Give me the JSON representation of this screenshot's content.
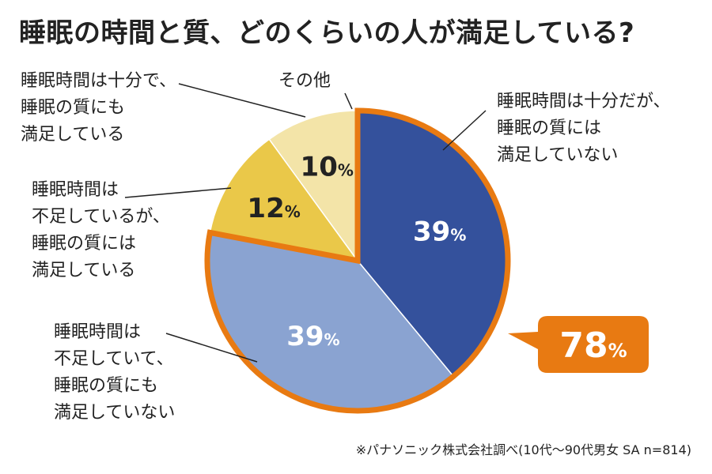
{
  "title": "睡眠の時間と質、どのくらいの人が満足している?",
  "source_note": "※パナソニック株式会社調べ(10代〜90代男女 SA n=814)",
  "callout": "78%",
  "colors": {
    "slice_1": "#34519c",
    "slice_2": "#8aa3d1",
    "slice_3": "#eac849",
    "slice_4": "#f3e4a8",
    "highlight": "#e87a12",
    "callout_text": "#ffffff"
  },
  "chart_data": {
    "type": "pie",
    "title": "睡眠の時間と質、どのくらいの人が満足している?",
    "slices": [
      {
        "label": "睡眠時間は十分だが、\n睡眠の質には\n満足していない",
        "value": 39,
        "value_label": "39%",
        "highlighted": true
      },
      {
        "label": "睡眠時間は\n不足していて、\n睡眠の質にも\n満足していない",
        "value": 39,
        "value_label": "39%",
        "highlighted": true
      },
      {
        "label": "睡眠時間は\n不足しているが、\n睡眠の質には\n満足している",
        "value": 12,
        "value_label": "12%",
        "highlighted": false
      },
      {
        "label": "睡眠時間は十分で、\n睡眠の質にも\n満足している",
        "value": 10,
        "value_label": "10%",
        "highlighted": false
      }
    ],
    "other_label": "その他",
    "highlight_total_label": "78%"
  }
}
